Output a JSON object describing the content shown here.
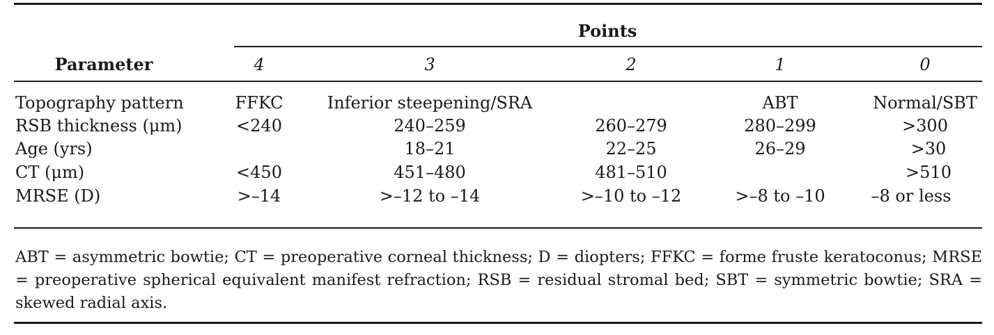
{
  "table": {
    "header": {
      "parameter_label": "Parameter",
      "points_label": "Points",
      "point_columns": [
        "4",
        "3",
        "2",
        "1",
        "0"
      ]
    },
    "rows": [
      {
        "parameter": "Topography pattern",
        "cells": [
          "FFKC",
          "Inferior steepening/SRA",
          "",
          "ABT",
          "Normal/SBT"
        ]
      },
      {
        "parameter": "RSB thickness (μm)",
        "cells": [
          "<240",
          "240–259",
          "260–279",
          "280–299",
          ">300"
        ]
      },
      {
        "parameter": "Age (yrs)",
        "cells": [
          "",
          "18–21",
          "22–25",
          "26–29",
          ">30"
        ]
      },
      {
        "parameter": "CT (μm)",
        "cells": [
          "<450",
          "451–480",
          "481–510",
          "",
          ">510"
        ]
      },
      {
        "parameter": "MRSE (D)",
        "cells": [
          ">–14",
          ">–12 to –14",
          ">–10 to –12",
          ">–8 to –10",
          "–8 or less"
        ]
      }
    ],
    "footnote": "ABT = asymmetric bowtie; CT = preoperative corneal thickness; D = diopters; FFKC = forme fruste keratoconus; MRSE = preoperative spherical equivalent manifest refraction; RSB = residual stromal bed; SBT = symmetric bowtie; SRA = skewed radial axis."
  }
}
